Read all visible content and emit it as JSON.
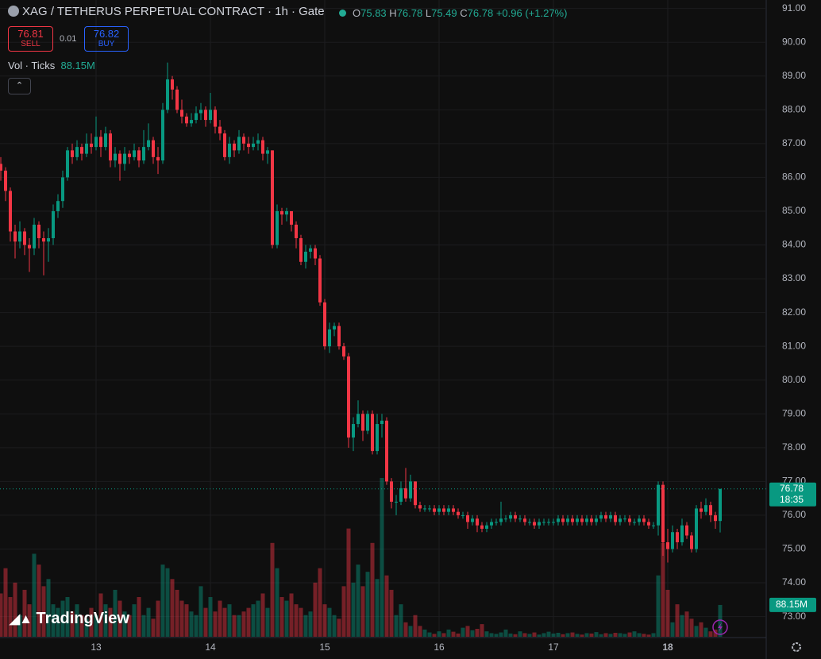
{
  "header": {
    "title": "XAG / TETHERUS PERPETUAL CONTRACT · 1h · Gate",
    "o_label": "O",
    "h_label": "H",
    "l_label": "L",
    "c_label": "C",
    "change": "+0.96 (+1.27%)"
  },
  "trade": {
    "sell_price": 76.81,
    "sell_label": "SELL",
    "spread": 0.01,
    "buy_price": 76.82,
    "buy_label": "BUY"
  },
  "indicator": {
    "name": "Vol · Ticks"
  },
  "brand": "TradingView",
  "chart_data": {
    "type": "candlestick",
    "categories": [
      null,
      null,
      null,
      null,
      null,
      null,
      null,
      null,
      null,
      null,
      null,
      null,
      null,
      null,
      null,
      null,
      null,
      null,
      null,
      null,
      "13",
      null,
      null,
      null,
      null,
      null,
      null,
      null,
      null,
      null,
      null,
      null,
      null,
      null,
      null,
      null,
      null,
      null,
      null,
      null,
      null,
      null,
      null,
      null,
      "14",
      null,
      null,
      null,
      null,
      null,
      null,
      null,
      null,
      null,
      null,
      null,
      null,
      null,
      null,
      null,
      null,
      null,
      null,
      null,
      null,
      null,
      null,
      null,
      "15",
      null,
      null,
      null,
      null,
      null,
      null,
      null,
      null,
      null,
      null,
      null,
      null,
      null,
      null,
      null,
      null,
      null,
      null,
      null,
      null,
      null,
      null,
      null,
      "16",
      null,
      null,
      null,
      null,
      null,
      null,
      null,
      null,
      null,
      null,
      null,
      null,
      null,
      null,
      null,
      null,
      null,
      null,
      null,
      null,
      null,
      null,
      null,
      "17",
      null,
      null,
      null,
      null,
      null,
      null,
      null,
      null,
      null,
      null,
      null,
      null,
      null,
      null,
      null,
      null,
      null,
      null,
      null,
      null,
      null,
      null,
      null,
      "18",
      null,
      null,
      null,
      null,
      null,
      null,
      null,
      null,
      null,
      null,
      null
    ],
    "candles": [
      [
        86.4,
        86.6,
        85.9,
        86.2
      ],
      [
        86.2,
        86.3,
        85.3,
        85.6
      ],
      [
        85.6,
        85.7,
        84.1,
        84.4
      ],
      [
        84.4,
        84.6,
        83.6,
        84.1
      ],
      [
        84.1,
        84.7,
        83.9,
        84.4
      ],
      [
        84.4,
        84.5,
        83.7,
        84.0
      ],
      [
        84.0,
        84.2,
        83.2,
        83.9
      ],
      [
        83.9,
        84.8,
        83.7,
        84.6
      ],
      [
        84.6,
        84.7,
        83.9,
        84.2
      ],
      [
        84.2,
        84.4,
        83.1,
        84.1
      ],
      [
        84.1,
        84.5,
        83.5,
        84.2
      ],
      [
        84.2,
        85.2,
        84.0,
        85.0
      ],
      [
        85.0,
        85.5,
        84.8,
        85.3
      ],
      [
        85.3,
        86.2,
        85.1,
        86.0
      ],
      [
        86.0,
        86.9,
        85.9,
        86.8
      ],
      [
        86.8,
        87.0,
        86.4,
        86.6
      ],
      [
        86.6,
        87.1,
        86.5,
        86.9
      ],
      [
        86.9,
        87.0,
        86.5,
        86.7
      ],
      [
        86.7,
        87.3,
        86.6,
        87.0
      ],
      [
        87.0,
        87.3,
        86.7,
        86.9
      ],
      [
        86.9,
        87.8,
        86.8,
        87.2
      ],
      [
        87.2,
        87.4,
        86.6,
        86.9
      ],
      [
        86.9,
        87.5,
        86.8,
        87.3
      ],
      [
        87.3,
        87.4,
        86.3,
        86.5
      ],
      [
        86.5,
        86.9,
        86.3,
        86.7
      ],
      [
        86.7,
        86.8,
        85.9,
        86.4
      ],
      [
        86.4,
        86.9,
        86.2,
        86.7
      ],
      [
        86.7,
        86.8,
        86.4,
        86.6
      ],
      [
        86.6,
        87.0,
        86.5,
        86.8
      ],
      [
        86.8,
        86.9,
        86.3,
        86.5
      ],
      [
        86.5,
        87.4,
        86.4,
        86.9
      ],
      [
        86.9,
        87.6,
        86.8,
        87.1
      ],
      [
        87.1,
        87.2,
        86.4,
        86.6
      ],
      [
        86.6,
        86.9,
        86.1,
        86.5
      ],
      [
        86.5,
        88.2,
        86.4,
        88.0
      ],
      [
        88.0,
        89.4,
        87.9,
        88.9
      ],
      [
        88.9,
        89.0,
        88.3,
        88.6
      ],
      [
        88.6,
        88.7,
        87.9,
        88.0
      ],
      [
        88.0,
        88.3,
        87.6,
        87.8
      ],
      [
        87.8,
        87.9,
        87.5,
        87.6
      ],
      [
        87.6,
        87.9,
        87.5,
        87.7
      ],
      [
        87.7,
        88.1,
        87.6,
        87.9
      ],
      [
        87.9,
        88.2,
        87.7,
        88.0
      ],
      [
        88.0,
        88.1,
        87.5,
        87.7
      ],
      [
        87.7,
        88.5,
        87.6,
        88.0
      ],
      [
        88.0,
        88.1,
        87.3,
        87.5
      ],
      [
        87.5,
        87.7,
        87.1,
        87.3
      ],
      [
        87.3,
        87.4,
        86.5,
        86.6
      ],
      [
        86.6,
        87.2,
        86.4,
        87.0
      ],
      [
        87.0,
        87.1,
        86.6,
        86.8
      ],
      [
        86.8,
        87.4,
        86.7,
        87.2
      ],
      [
        87.2,
        87.3,
        86.8,
        87.0
      ],
      [
        87.0,
        87.2,
        86.7,
        86.9
      ],
      [
        86.9,
        87.2,
        86.8,
        87.0
      ],
      [
        87.0,
        87.3,
        86.8,
        87.1
      ],
      [
        87.1,
        87.2,
        86.5,
        86.7
      ],
      [
        86.7,
        86.9,
        86.4,
        86.8
      ],
      [
        86.8,
        86.8,
        83.9,
        84.0
      ],
      [
        84.0,
        85.2,
        83.9,
        85.0
      ],
      [
        85.0,
        85.1,
        84.6,
        84.9
      ],
      [
        84.9,
        85.1,
        84.7,
        85.0
      ],
      [
        85.0,
        85.0,
        84.4,
        84.6
      ],
      [
        84.6,
        84.7,
        83.9,
        84.2
      ],
      [
        84.2,
        84.3,
        83.4,
        83.5
      ],
      [
        83.5,
        84.0,
        83.3,
        83.8
      ],
      [
        83.8,
        84.0,
        83.6,
        83.9
      ],
      [
        83.9,
        84.0,
        83.4,
        83.6
      ],
      [
        83.6,
        83.7,
        82.2,
        82.3
      ],
      [
        82.3,
        82.4,
        80.9,
        81.0
      ],
      [
        81.0,
        81.7,
        80.8,
        81.5
      ],
      [
        81.5,
        81.7,
        81.3,
        81.6
      ],
      [
        81.6,
        81.7,
        80.9,
        81.0
      ],
      [
        81.0,
        81.1,
        80.6,
        80.7
      ],
      [
        80.7,
        80.8,
        78.0,
        78.3
      ],
      [
        78.3,
        78.9,
        77.9,
        78.7
      ],
      [
        78.7,
        79.4,
        78.6,
        79.0
      ],
      [
        79.0,
        79.1,
        78.2,
        78.5
      ],
      [
        78.5,
        79.1,
        78.4,
        79.0
      ],
      [
        79.0,
        79.1,
        77.8,
        77.9
      ],
      [
        77.9,
        79.0,
        77.8,
        78.7
      ],
      [
        78.7,
        79.0,
        78.3,
        78.8
      ],
      [
        78.8,
        78.9,
        76.9,
        77.0
      ],
      [
        77.0,
        77.1,
        76.2,
        76.4
      ],
      [
        76.4,
        76.6,
        76.0,
        76.4
      ],
      [
        76.4,
        77.0,
        76.3,
        76.8
      ],
      [
        76.8,
        77.4,
        76.4,
        76.5
      ],
      [
        76.5,
        77.2,
        76.4,
        77.0
      ],
      [
        77.0,
        77.0,
        76.2,
        76.3
      ],
      [
        76.3,
        76.4,
        76.1,
        76.2
      ],
      [
        76.2,
        76.3,
        76.1,
        76.2
      ],
      [
        76.2,
        76.3,
        76.1,
        76.2
      ],
      [
        76.2,
        76.3,
        76.0,
        76.1
      ],
      [
        76.1,
        76.3,
        76.0,
        76.2
      ],
      [
        76.2,
        76.3,
        76.0,
        76.1
      ],
      [
        76.1,
        76.3,
        76.0,
        76.2
      ],
      [
        76.2,
        76.3,
        76.0,
        76.1
      ],
      [
        76.1,
        76.2,
        75.9,
        76.0
      ],
      [
        76.0,
        76.1,
        75.9,
        76.0
      ],
      [
        76.0,
        76.1,
        75.6,
        75.8
      ],
      [
        75.8,
        76.0,
        75.7,
        75.9
      ],
      [
        75.9,
        76.0,
        75.5,
        75.7
      ],
      [
        75.7,
        75.8,
        75.5,
        75.6
      ],
      [
        75.6,
        75.8,
        75.5,
        75.7
      ],
      [
        75.7,
        75.9,
        75.6,
        75.8
      ],
      [
        75.8,
        75.9,
        75.7,
        75.8
      ],
      [
        75.8,
        76.4,
        75.7,
        75.9
      ],
      [
        75.9,
        76.0,
        75.8,
        75.9
      ],
      [
        75.9,
        76.1,
        75.8,
        76.0
      ],
      [
        76.0,
        76.1,
        75.8,
        75.9
      ],
      [
        75.9,
        76.0,
        75.8,
        75.9
      ],
      [
        75.9,
        76.0,
        75.7,
        75.8
      ],
      [
        75.8,
        75.9,
        75.7,
        75.8
      ],
      [
        75.8,
        75.9,
        75.6,
        75.7
      ],
      [
        75.7,
        75.9,
        75.6,
        75.8
      ],
      [
        75.8,
        75.9,
        75.7,
        75.8
      ],
      [
        75.8,
        75.9,
        75.7,
        75.8
      ],
      [
        75.8,
        75.9,
        75.7,
        75.8
      ],
      [
        75.8,
        76.0,
        75.7,
        75.9
      ],
      [
        75.9,
        76.0,
        75.7,
        75.8
      ],
      [
        75.8,
        76.0,
        75.7,
        75.9
      ],
      [
        75.9,
        76.0,
        75.7,
        75.8
      ],
      [
        75.8,
        76.0,
        75.7,
        75.9
      ],
      [
        75.9,
        76.0,
        75.7,
        75.8
      ],
      [
        75.8,
        76.0,
        75.7,
        75.9
      ],
      [
        75.9,
        76.0,
        75.7,
        75.8
      ],
      [
        75.8,
        76.0,
        75.7,
        75.9
      ],
      [
        75.9,
        76.1,
        75.8,
        76.0
      ],
      [
        76.0,
        76.1,
        75.8,
        75.9
      ],
      [
        75.9,
        76.1,
        75.8,
        76.0
      ],
      [
        76.0,
        76.1,
        75.7,
        75.8
      ],
      [
        75.8,
        76.0,
        75.7,
        75.9
      ],
      [
        75.9,
        76.0,
        75.8,
        75.9
      ],
      [
        75.9,
        76.0,
        75.7,
        75.8
      ],
      [
        75.8,
        75.9,
        75.7,
        75.8
      ],
      [
        75.8,
        76.0,
        75.7,
        75.9
      ],
      [
        75.9,
        76.0,
        75.7,
        75.8
      ],
      [
        75.8,
        75.9,
        75.6,
        75.7
      ],
      [
        75.7,
        75.8,
        75.6,
        75.7
      ],
      [
        75.7,
        77.0,
        75.4,
        76.9
      ],
      [
        76.9,
        77.0,
        74.8,
        75.2
      ],
      [
        75.2,
        75.6,
        74.6,
        75.0
      ],
      [
        75.0,
        75.7,
        74.9,
        75.5
      ],
      [
        75.5,
        75.6,
        75.0,
        75.2
      ],
      [
        75.2,
        75.9,
        75.1,
        75.7
      ],
      [
        75.7,
        75.8,
        75.3,
        75.4
      ],
      [
        75.4,
        75.5,
        74.9,
        75.0
      ],
      [
        75.0,
        76.3,
        74.9,
        76.2
      ],
      [
        76.2,
        76.4,
        75.9,
        76.1
      ],
      [
        76.1,
        76.5,
        76.0,
        76.3
      ],
      [
        76.3,
        76.4,
        75.8,
        76.0
      ],
      [
        76.0,
        76.1,
        75.6,
        75.83
      ],
      [
        75.83,
        76.78,
        75.49,
        76.78
      ]
    ],
    "volumes": [
      120,
      190,
      110,
      150,
      60,
      130,
      90,
      230,
      200,
      140,
      160,
      90,
      80,
      100,
      110,
      70,
      90,
      60,
      50,
      80,
      60,
      120,
      90,
      80,
      130,
      100,
      70,
      60,
      90,
      110,
      60,
      80,
      50,
      100,
      200,
      190,
      160,
      130,
      100,
      90,
      70,
      60,
      140,
      80,
      110,
      70,
      100,
      80,
      90,
      60,
      60,
      70,
      80,
      90,
      100,
      120,
      80,
      260,
      190,
      110,
      100,
      120,
      90,
      80,
      60,
      70,
      150,
      190,
      90,
      80,
      60,
      50,
      140,
      300,
      150,
      200,
      140,
      180,
      260,
      160,
      440,
      170,
      130,
      60,
      90,
      40,
      30,
      60,
      30,
      20,
      12,
      8,
      15,
      10,
      20,
      14,
      9,
      25,
      30,
      18,
      22,
      35,
      15,
      10,
      8,
      12,
      20,
      9,
      7,
      15,
      10,
      8,
      12,
      6,
      10,
      14,
      9,
      11,
      7,
      10,
      12,
      8,
      6,
      10,
      9,
      13,
      7,
      10,
      8,
      11,
      10,
      8,
      12,
      15,
      10,
      8,
      6,
      10,
      170,
      260,
      130,
      40,
      90,
      60,
      70,
      50,
      30,
      40,
      25,
      15,
      20,
      88.15
    ],
    "volume_label": "88.15M",
    "countdown": "18:35",
    "ylim": [
      72.45,
      91.25
    ],
    "yticks": [
      {
        "value": 73,
        "label": "73.00"
      },
      {
        "value": 74,
        "label": "74.00"
      },
      {
        "value": 75,
        "label": "75.00"
      },
      {
        "value": 76,
        "label": "76.00"
      },
      {
        "value": 77,
        "label": "77.00"
      },
      {
        "value": 78,
        "label": "78.00"
      },
      {
        "value": 79,
        "label": "79.00"
      },
      {
        "value": 80,
        "label": "80.00"
      },
      {
        "value": 81,
        "label": "81.00"
      },
      {
        "value": 82,
        "label": "82.00"
      },
      {
        "value": 83,
        "label": "83.00"
      },
      {
        "value": 84,
        "label": "84.00"
      },
      {
        "value": 85,
        "label": "85.00"
      },
      {
        "value": 86,
        "label": "86.00"
      },
      {
        "value": 87,
        "label": "87.00"
      },
      {
        "value": 88,
        "label": "88.00"
      },
      {
        "value": 89,
        "label": "89.00"
      },
      {
        "value": 90,
        "label": "90.00"
      },
      {
        "value": 91,
        "label": "91.00"
      }
    ],
    "up_color": "#089981",
    "down_color": "#f23645",
    "grid": true
  }
}
